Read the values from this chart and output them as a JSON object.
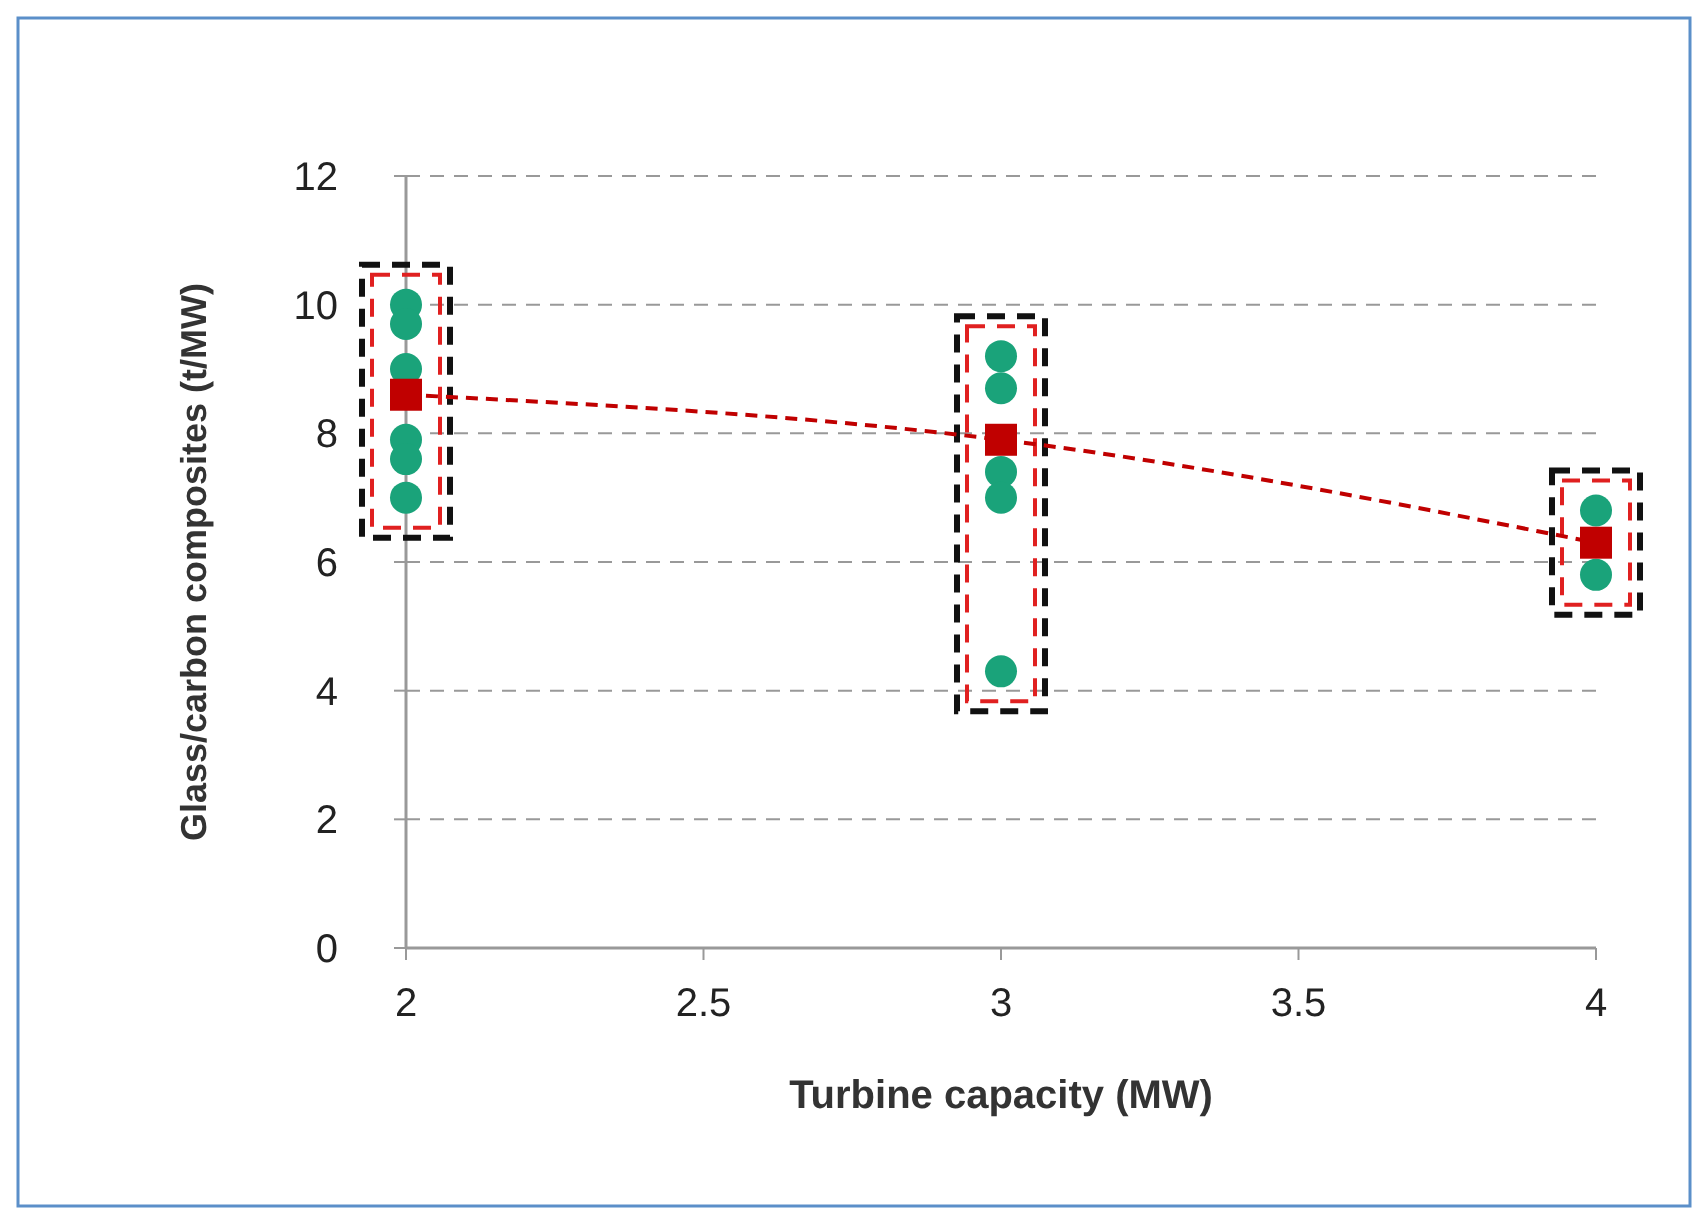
{
  "chart_data": {
    "type": "scatter",
    "xlabel": "Turbine capacity (MW)",
    "ylabel": "Glass/carbon composites (t/MW)",
    "xlim": [
      2,
      4
    ],
    "xticks": [
      2,
      2.5,
      3,
      3.5,
      4
    ],
    "ylim": [
      0,
      12
    ],
    "yticks": [
      0,
      2,
      4,
      6,
      8,
      10,
      12
    ],
    "grid": "y",
    "series": [
      {
        "type": "scatter",
        "color": "#1aa37a",
        "marker": "circle",
        "x": [
          2,
          2,
          2,
          2,
          2,
          2,
          3,
          3,
          3,
          3,
          3,
          4,
          4
        ],
        "values": [
          10,
          9.7,
          9,
          7.9,
          7.6,
          7,
          9.2,
          8.7,
          7.4,
          7,
          4.3,
          6.8,
          5.8
        ]
      },
      {
        "type": "line",
        "color": "#c00000",
        "marker": "square",
        "line_style": "dashed",
        "x": [
          2,
          3,
          4
        ],
        "values": [
          8.6,
          7.9,
          6.3
        ]
      }
    ]
  }
}
